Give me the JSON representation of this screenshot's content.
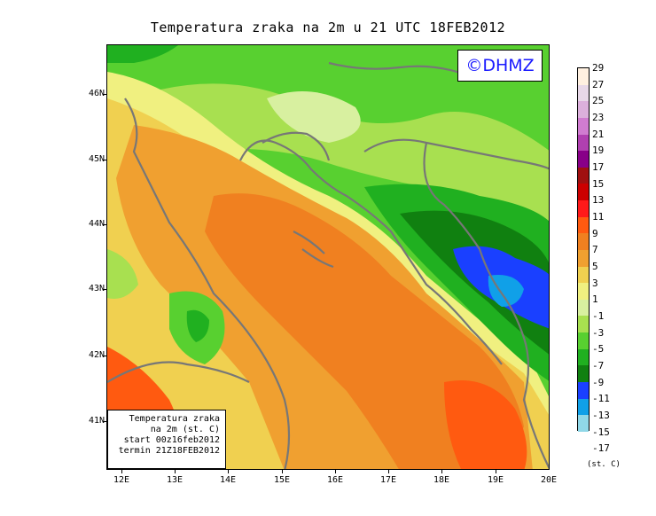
{
  "title": "Temperatura zraka na 2m u 21 UTC 18FEB2012",
  "logo": "©DHMZ",
  "info": {
    "line1": "Temperatura zraka",
    "line2": "na 2m (st. C)",
    "line3": "start 00z16feb2012",
    "line4": "termin 21Z18FEB2012"
  },
  "lat_labels": [
    "46N",
    "45N",
    "44N",
    "43N",
    "42N",
    "41N"
  ],
  "lon_labels": [
    "12E",
    "13E",
    "14E",
    "15E",
    "16E",
    "17E",
    "18E",
    "19E",
    "20E"
  ],
  "legend": {
    "labels": [
      "29",
      "27",
      "25",
      "23",
      "21",
      "19",
      "17",
      "15",
      "13",
      "11",
      "9",
      "7",
      "5",
      "3",
      "1",
      "-1",
      "-3",
      "-5",
      "-7",
      "-9",
      "-11",
      "-13",
      "-15",
      "-17"
    ],
    "colors": [
      "#fff0e0",
      "#e8d8e8",
      "#dcb0dc",
      "#d07cd0",
      "#b040b0",
      "#880088",
      "#a01010",
      "#cc0000",
      "#ff1a1a",
      "#ff5a10",
      "#f08020",
      "#f0a030",
      "#f0d050",
      "#f0f080",
      "#d8f0a0",
      "#a8e050",
      "#58d030",
      "#20b020",
      "#108010",
      "#1a40ff",
      "#10a0e8",
      "#90d8e8",
      "#c8f0f0",
      "#f0ffff"
    ],
    "unit": "(st. C)"
  }
}
